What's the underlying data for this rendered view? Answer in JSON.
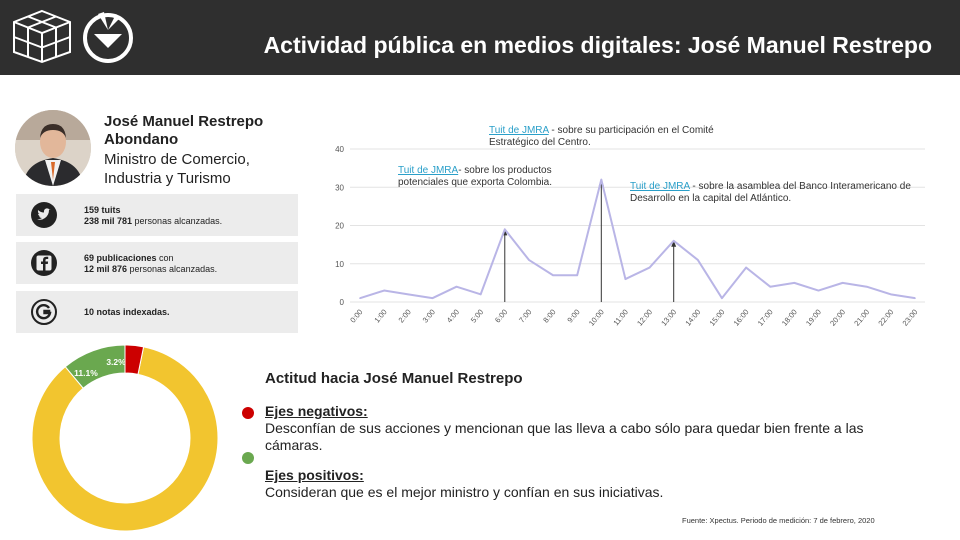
{
  "header": {
    "title": "Actividad pública en medios digitales: José Manuel Restrepo"
  },
  "profile": {
    "name": "José Manuel Restrepo Abondano",
    "role": "Ministro de Comercio, Industria y Turismo"
  },
  "stats": {
    "twitter": {
      "bold": "159 tuits",
      "bold2": "238 mil 781",
      "rest2": " personas alcanzadas.",
      "icon": "twitter-icon"
    },
    "facebook": {
      "bold": "69 publicaciones",
      "rest": " con",
      "bold2": "12 mil 876",
      "rest2": " personas alcanzadas.",
      "icon": "facebook-icon"
    },
    "google": {
      "bold": "10 notas indexadas.",
      "icon": "google-icon"
    }
  },
  "annotations": [
    {
      "link": "Tuit de JMRA",
      "text": " - sobre su participación en el Comité Estratégico del Centro."
    },
    {
      "link": "Tuit de JMRA",
      "text": "- sobre los productos potenciales que exporta Colombia."
    },
    {
      "link": "Tuit de JMRA",
      "text": " - sobre la asamblea del Banco Interamericano de  Desarrollo en la capital del Atlántico."
    }
  ],
  "chart_data": [
    {
      "type": "line",
      "x": [
        "0:00",
        "1:00",
        "2:00",
        "3:00",
        "4:00",
        "5:00",
        "6:00",
        "7:00",
        "8:00",
        "9:00",
        "10:00",
        "11:00",
        "12:00",
        "13:00",
        "14:00",
        "15:00",
        "16:00",
        "17:00",
        "18:00",
        "19:00",
        "20:00",
        "21:00",
        "22:00",
        "23:00"
      ],
      "values": [
        1,
        3,
        2,
        1,
        4,
        2,
        19,
        11,
        7,
        7,
        32,
        6,
        9,
        16,
        11,
        1,
        9,
        4,
        5,
        3,
        5,
        4,
        2,
        1
      ],
      "yticks": [
        0,
        10,
        20,
        30,
        40
      ],
      "ylim": [
        0,
        40
      ],
      "grid": true,
      "color": "#b9b5e6",
      "markers": [
        "6:00",
        "10:00",
        "13:00"
      ]
    },
    {
      "type": "pie",
      "donut": true,
      "labels": [
        "85.7%",
        "11.1%",
        "3.2%"
      ],
      "values": [
        85.7,
        11.1,
        3.2
      ],
      "colors": [
        "#f2c52f",
        "#6aa84f",
        "#cc0000"
      ]
    }
  ],
  "attitude": {
    "title": "Actitud hacia José Manuel Restrepo",
    "negative_head": "Ejes negativos:",
    "negative_text": "Desconfían de sus acciones y mencionan que las lleva a cabo sólo para quedar bien frente a las cámaras.",
    "positive_head": "Ejes positivos:",
    "positive_text": "Consideran que es el mejor ministro y confían en sus iniciativas.",
    "negative_color": "#cc0000",
    "positive_color": "#6aa84f"
  },
  "source": "Fuente: Xpectus. Periodo de medición:  7 de febrero, 2020"
}
